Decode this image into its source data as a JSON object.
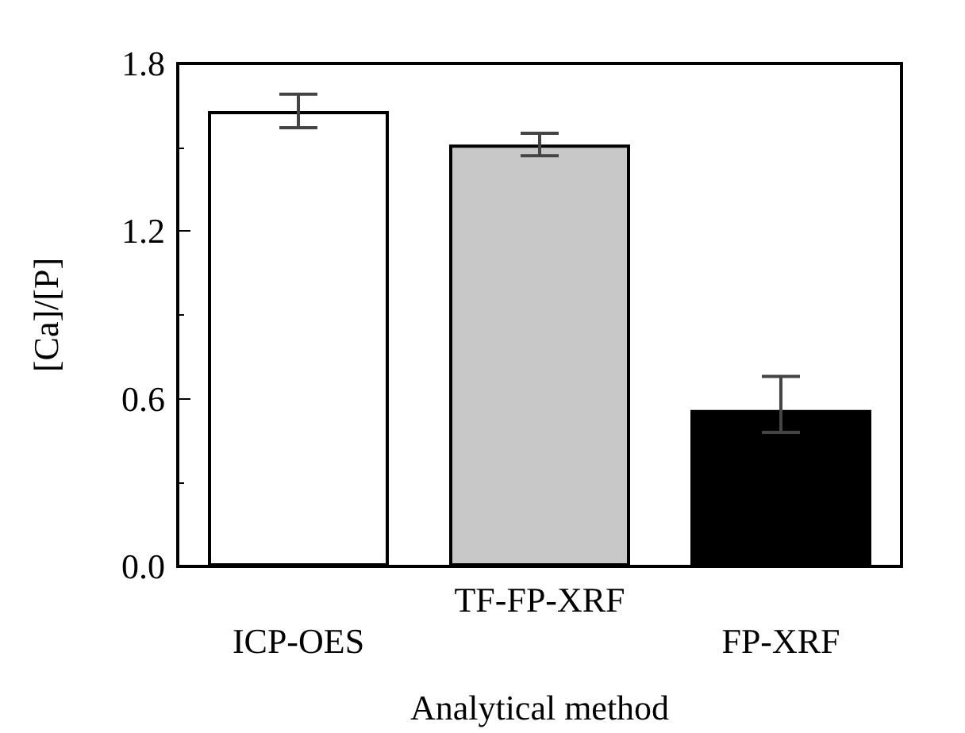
{
  "chart_data": {
    "type": "bar",
    "xlabel": "Analytical method",
    "ylabel": "[Ca]/[P]",
    "categories": [
      "ICP-OES",
      "TF-FP-XRF",
      "FP-XRF"
    ],
    "values": [
      1.63,
      1.51,
      0.56
    ],
    "colors": [
      "#ffffff",
      "#c8c8c8",
      "#000000"
    ],
    "errors": [
      [
        1.57,
        1.69
      ],
      [
        1.47,
        1.55
      ],
      [
        0.48,
        0.68
      ]
    ],
    "ylim": [
      0,
      1.8
    ],
    "yticks": [
      {
        "value": 0,
        "label": "0.0"
      },
      0.6,
      1.2,
      1.8
    ],
    "grid": false
  }
}
